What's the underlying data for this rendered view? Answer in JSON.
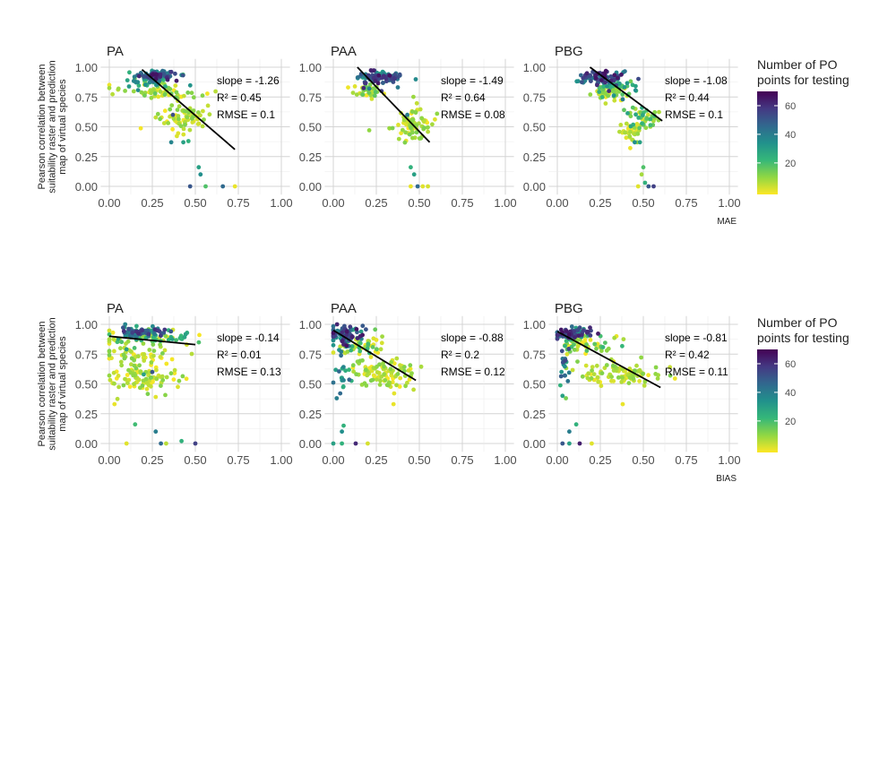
{
  "figure": {
    "y_axis_label_lines": [
      "Pearson correlation between",
      "suitability raster and prediction",
      "map of virtual species"
    ],
    "legend": {
      "title_lines": [
        "Number of PO",
        "points for testing"
      ],
      "ticks": [
        20,
        40,
        60
      ],
      "range": [
        1,
        68
      ],
      "palette": [
        "#fde725",
        "#90d743",
        "#35b779",
        "#21918c",
        "#31688e",
        "#443983",
        "#440154"
      ]
    }
  },
  "chart_data": [
    {
      "type": "scatter",
      "row": 0,
      "col": 0,
      "title": "PA",
      "xlabel": "",
      "xlim": [
        0,
        1
      ],
      "ylim": [
        0,
        1
      ],
      "xticks": [
        "0.00",
        "0.25",
        "0.50",
        "0.75",
        "1.00"
      ],
      "yticks": [
        "0.00",
        "0.25",
        "0.50",
        "0.75",
        "1.00"
      ],
      "fit_line": {
        "x": [
          0.19,
          0.73
        ],
        "y": [
          0.98,
          0.31
        ]
      },
      "stats": [
        "slope = -1.26",
        "R² = 0.45",
        "RMSE = 0.1"
      ],
      "clusters": [
        {
          "cx": 0.27,
          "cy": 0.93,
          "sx": 0.06,
          "sy": 0.02,
          "n": 80,
          "c": [
            30,
            65
          ]
        },
        {
          "cx": 0.24,
          "cy": 0.88,
          "sx": 0.08,
          "sy": 0.03,
          "n": 40,
          "c": [
            10,
            40
          ]
        },
        {
          "cx": 0.3,
          "cy": 0.79,
          "sx": 0.12,
          "sy": 0.03,
          "n": 55,
          "c": [
            1,
            18
          ]
        },
        {
          "cx": 0.42,
          "cy": 0.58,
          "sx": 0.07,
          "sy": 0.06,
          "n": 75,
          "c": [
            1,
            15
          ]
        }
      ],
      "outliers": [
        {
          "x": 0.37,
          "y": 0.6,
          "c": 52
        },
        {
          "x": 0.36,
          "y": 0.37,
          "c": 38
        },
        {
          "x": 0.43,
          "y": 0.37,
          "c": 30
        },
        {
          "x": 0.46,
          "y": 0.38,
          "c": 25
        },
        {
          "x": 0.47,
          "y": 0.0,
          "c": 50
        },
        {
          "x": 0.53,
          "y": 0.1,
          "c": 35
        },
        {
          "x": 0.52,
          "y": 0.16,
          "c": 30
        },
        {
          "x": 0.56,
          "y": 0.0,
          "c": 20
        },
        {
          "x": 0.66,
          "y": 0.0,
          "c": 45
        },
        {
          "x": 0.73,
          "y": 0.0,
          "c": 3
        }
      ]
    },
    {
      "type": "scatter",
      "row": 0,
      "col": 1,
      "title": "PAA",
      "xlabel": "",
      "xlim": [
        0,
        1
      ],
      "ylim": [
        0,
        1
      ],
      "xticks": [
        "0.00",
        "0.25",
        "0.50",
        "0.75",
        "1.00"
      ],
      "yticks": [
        "0.00",
        "0.25",
        "0.50",
        "0.75",
        "1.00"
      ],
      "fit_line": {
        "x": [
          0.14,
          0.56
        ],
        "y": [
          1.0,
          0.37
        ]
      },
      "stats": [
        "slope = -1.49",
        "R² = 0.64",
        "RMSE = 0.08"
      ],
      "clusters": [
        {
          "cx": 0.25,
          "cy": 0.91,
          "sx": 0.07,
          "sy": 0.03,
          "n": 90,
          "c": [
            25,
            65
          ]
        },
        {
          "cx": 0.2,
          "cy": 0.8,
          "sx": 0.04,
          "sy": 0.03,
          "n": 40,
          "c": [
            1,
            20
          ]
        },
        {
          "cx": 0.45,
          "cy": 0.53,
          "sx": 0.06,
          "sy": 0.07,
          "n": 80,
          "c": [
            1,
            15
          ]
        }
      ],
      "outliers": [
        {
          "x": 0.28,
          "y": 0.8,
          "c": 55
        },
        {
          "x": 0.43,
          "y": 0.6,
          "c": 40
        },
        {
          "x": 0.45,
          "y": 0.16,
          "c": 25
        },
        {
          "x": 0.47,
          "y": 0.1,
          "c": 30
        },
        {
          "x": 0.45,
          "y": 0.0,
          "c": 3
        },
        {
          "x": 0.49,
          "y": 0.0,
          "c": 45
        },
        {
          "x": 0.52,
          "y": 0.0,
          "c": 4
        },
        {
          "x": 0.55,
          "y": 0.0,
          "c": 5
        }
      ]
    },
    {
      "type": "scatter",
      "row": 0,
      "col": 2,
      "title": "PBG",
      "xlabel": "MAE",
      "xlim": [
        0,
        1
      ],
      "ylim": [
        0,
        1
      ],
      "xticks": [
        "0.00",
        "0.25",
        "0.50",
        "0.75",
        "1.00"
      ],
      "yticks": [
        "0.00",
        "0.25",
        "0.50",
        "0.75",
        "1.00"
      ],
      "fit_line": {
        "x": [
          0.19,
          0.61
        ],
        "y": [
          1.0,
          0.55
        ]
      },
      "stats": [
        "slope = -1.08",
        "R² = 0.44",
        "RMSE = 0.1"
      ],
      "clusters": [
        {
          "cx": 0.25,
          "cy": 0.91,
          "sx": 0.08,
          "sy": 0.03,
          "n": 85,
          "c": [
            30,
            65
          ]
        },
        {
          "cx": 0.33,
          "cy": 0.85,
          "sx": 0.06,
          "sy": 0.03,
          "n": 40,
          "c": [
            10,
            35
          ]
        },
        {
          "cx": 0.3,
          "cy": 0.78,
          "sx": 0.06,
          "sy": 0.03,
          "n": 40,
          "c": [
            1,
            15
          ]
        },
        {
          "cx": 0.5,
          "cy": 0.58,
          "sx": 0.05,
          "sy": 0.05,
          "n": 45,
          "c": [
            1,
            30
          ]
        },
        {
          "cx": 0.43,
          "cy": 0.45,
          "sx": 0.04,
          "sy": 0.04,
          "n": 35,
          "c": [
            1,
            12
          ]
        }
      ],
      "outliers": [
        {
          "x": 0.3,
          "y": 0.8,
          "c": 60
        },
        {
          "x": 0.38,
          "y": 0.73,
          "c": 40
        },
        {
          "x": 0.45,
          "y": 0.37,
          "c": 35
        },
        {
          "x": 0.48,
          "y": 0.37,
          "c": 30
        },
        {
          "x": 0.5,
          "y": 0.16,
          "c": 20
        },
        {
          "x": 0.49,
          "y": 0.1,
          "c": 10
        },
        {
          "x": 0.51,
          "y": 0.03,
          "c": 25
        },
        {
          "x": 0.47,
          "y": 0.0,
          "c": 4
        },
        {
          "x": 0.53,
          "y": 0.0,
          "c": 50
        },
        {
          "x": 0.56,
          "y": 0.0,
          "c": 55
        }
      ]
    },
    {
      "type": "scatter",
      "row": 1,
      "col": 0,
      "title": "PA",
      "xlabel": "",
      "xlim": [
        0,
        1
      ],
      "ylim": [
        0,
        1
      ],
      "xticks": [
        "0.00",
        "0.25",
        "0.50",
        "0.75",
        "1.00"
      ],
      "yticks": [
        "0.00",
        "0.25",
        "0.50",
        "0.75",
        "1.00"
      ],
      "fit_line": {
        "x": [
          0.0,
          0.5
        ],
        "y": [
          0.9,
          0.83
        ]
      },
      "stats": [
        "slope = -0.14",
        "R² = 0.01",
        "RMSE = 0.13"
      ],
      "clusters": [
        {
          "cx": 0.2,
          "cy": 0.94,
          "sx": 0.07,
          "sy": 0.02,
          "n": 70,
          "c": [
            25,
            60
          ]
        },
        {
          "cx": 0.22,
          "cy": 0.88,
          "sx": 0.14,
          "sy": 0.03,
          "n": 70,
          "c": [
            1,
            30
          ]
        },
        {
          "cx": 0.18,
          "cy": 0.74,
          "sx": 0.12,
          "sy": 0.04,
          "n": 45,
          "c": [
            1,
            15
          ]
        },
        {
          "cx": 0.2,
          "cy": 0.55,
          "sx": 0.12,
          "sy": 0.06,
          "n": 90,
          "c": [
            1,
            15
          ]
        }
      ],
      "outliers": [
        {
          "x": 0.1,
          "y": 0.79,
          "c": 30
        },
        {
          "x": 0.25,
          "y": 0.6,
          "c": 50
        },
        {
          "x": 0.2,
          "y": 0.58,
          "c": 30
        },
        {
          "x": 0.03,
          "y": 0.33,
          "c": 3
        },
        {
          "x": 0.27,
          "y": 0.39,
          "c": 4
        },
        {
          "x": 0.15,
          "y": 0.16,
          "c": 22
        },
        {
          "x": 0.27,
          "y": 0.1,
          "c": 40
        },
        {
          "x": 0.1,
          "y": 0.0,
          "c": 4
        },
        {
          "x": 0.3,
          "y": 0.0,
          "c": 45
        },
        {
          "x": 0.33,
          "y": 0.0,
          "c": 8
        },
        {
          "x": 0.42,
          "y": 0.02,
          "c": 25
        },
        {
          "x": 0.5,
          "y": 0.0,
          "c": 55
        }
      ]
    },
    {
      "type": "scatter",
      "row": 1,
      "col": 1,
      "title": "PAA",
      "xlabel": "",
      "xlim": [
        0,
        1
      ],
      "ylim": [
        0,
        1
      ],
      "xticks": [
        "0.00",
        "0.25",
        "0.50",
        "0.75",
        "1.00"
      ],
      "yticks": [
        "0.00",
        "0.25",
        "0.50",
        "0.75",
        "1.00"
      ],
      "fit_line": {
        "x": [
          0.0,
          0.48
        ],
        "y": [
          0.95,
          0.53
        ]
      },
      "stats": [
        "slope = -0.88",
        "R² = 0.2",
        "RMSE = 0.12"
      ],
      "clusters": [
        {
          "cx": 0.08,
          "cy": 0.92,
          "sx": 0.05,
          "sy": 0.04,
          "n": 80,
          "c": [
            25,
            65
          ]
        },
        {
          "cx": 0.15,
          "cy": 0.82,
          "sx": 0.07,
          "sy": 0.04,
          "n": 50,
          "c": [
            1,
            25
          ]
        },
        {
          "cx": 0.3,
          "cy": 0.58,
          "sx": 0.1,
          "sy": 0.06,
          "n": 95,
          "c": [
            1,
            15
          ]
        },
        {
          "cx": 0.05,
          "cy": 0.65,
          "sx": 0.02,
          "sy": 0.12,
          "n": 20,
          "c": [
            20,
            50
          ]
        }
      ],
      "outliers": [
        {
          "x": 0.04,
          "y": 0.42,
          "c": 45
        },
        {
          "x": 0.02,
          "y": 0.38,
          "c": 40
        },
        {
          "x": 0.35,
          "y": 0.33,
          "c": 3
        },
        {
          "x": 0.06,
          "y": 0.15,
          "c": 25
        },
        {
          "x": 0.05,
          "y": 0.1,
          "c": 35
        },
        {
          "x": 0.0,
          "y": 0.0,
          "c": 30
        },
        {
          "x": 0.05,
          "y": 0.0,
          "c": 25
        },
        {
          "x": 0.13,
          "y": 0.0,
          "c": 60
        },
        {
          "x": 0.2,
          "y": 0.0,
          "c": 5
        }
      ]
    },
    {
      "type": "scatter",
      "row": 1,
      "col": 2,
      "title": "PBG",
      "xlabel": "BIAS",
      "xlim": [
        0,
        1
      ],
      "ylim": [
        0,
        1
      ],
      "xticks": [
        "0.00",
        "0.25",
        "0.50",
        "0.75",
        "1.00"
      ],
      "yticks": [
        "0.00",
        "0.25",
        "0.50",
        "0.75",
        "1.00"
      ],
      "fit_line": {
        "x": [
          0.0,
          0.6
        ],
        "y": [
          0.94,
          0.47
        ]
      },
      "stats": [
        "slope = -0.81",
        "R² = 0.42",
        "RMSE = 0.11"
      ],
      "clusters": [
        {
          "cx": 0.08,
          "cy": 0.92,
          "sx": 0.05,
          "sy": 0.03,
          "n": 80,
          "c": [
            25,
            65
          ]
        },
        {
          "cx": 0.2,
          "cy": 0.83,
          "sx": 0.09,
          "sy": 0.04,
          "n": 55,
          "c": [
            1,
            25
          ]
        },
        {
          "cx": 0.37,
          "cy": 0.58,
          "sx": 0.12,
          "sy": 0.05,
          "n": 95,
          "c": [
            1,
            15
          ]
        },
        {
          "cx": 0.04,
          "cy": 0.62,
          "sx": 0.02,
          "sy": 0.1,
          "n": 18,
          "c": [
            20,
            55
          ]
        }
      ],
      "outliers": [
        {
          "x": 0.03,
          "y": 0.4,
          "c": 30
        },
        {
          "x": 0.05,
          "y": 0.38,
          "c": 15
        },
        {
          "x": 0.38,
          "y": 0.33,
          "c": 3
        },
        {
          "x": 0.11,
          "y": 0.16,
          "c": 25
        },
        {
          "x": 0.07,
          "y": 0.1,
          "c": 40
        },
        {
          "x": 0.03,
          "y": 0.0,
          "c": 50
        },
        {
          "x": 0.07,
          "y": 0.0,
          "c": 30
        },
        {
          "x": 0.13,
          "y": 0.0,
          "c": 62
        },
        {
          "x": 0.2,
          "y": 0.0,
          "c": 4
        }
      ]
    }
  ]
}
